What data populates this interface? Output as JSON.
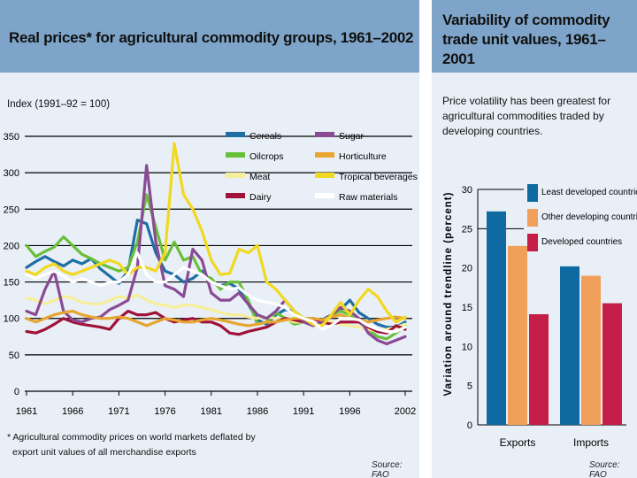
{
  "left": {
    "title": "Real prices* for agricultural commodity groups, 1961–2002",
    "ylabel": "Index (1991–92 = 100)",
    "footnote_line1": "* Agricultural commodity prices on world markets deflated by",
    "footnote_line2": "export unit values of all merchandise exports",
    "source": "Source: FAO"
  },
  "right": {
    "title": "Variability of commodity trade unit values, 1961–2001",
    "subtitle": "Price volatility has been greatest for agricultural commodities traded by developing countries.",
    "source": "Source: FAO"
  },
  "colors": {
    "panel_bg": "#e8eff7",
    "header_bg": "#7ea5c9",
    "cereals": "#1f6fa5",
    "oilcrops": "#6abf3a",
    "meat": "#f6ee9a",
    "dairy": "#a0123a",
    "sugar": "#8a4a94",
    "horticulture": "#e8a530",
    "tropical": "#f2d81e",
    "raw": "#ffffff",
    "least_developed": "#0e6aa0",
    "other_developing": "#f0a05a",
    "developed": "#c41e49"
  },
  "chart_data": [
    {
      "type": "line",
      "title": "Real prices* for agricultural commodity groups, 1961–2002",
      "ylabel": "Index (1991–92 = 100)",
      "xlabel": "",
      "ylim": [
        0,
        350
      ],
      "yticks": [
        0,
        50,
        100,
        150,
        200,
        250,
        300,
        350
      ],
      "xticks": [
        1961,
        1966,
        1971,
        1976,
        1981,
        1986,
        1991,
        1996,
        2002
      ],
      "grid": "horizontal",
      "legend_placement": "top-right",
      "x": [
        1961,
        1962,
        1963,
        1964,
        1965,
        1966,
        1967,
        1968,
        1969,
        1970,
        1971,
        1972,
        1973,
        1974,
        1975,
        1976,
        1977,
        1978,
        1979,
        1980,
        1981,
        1982,
        1983,
        1984,
        1985,
        1986,
        1987,
        1988,
        1989,
        1990,
        1991,
        1992,
        1993,
        1994,
        1995,
        1996,
        1997,
        1998,
        1999,
        2000,
        2001,
        2002
      ],
      "series": [
        {
          "name": "Cereals",
          "key": "cereals",
          "values": [
            170,
            178,
            185,
            178,
            172,
            180,
            175,
            182,
            168,
            158,
            148,
            165,
            235,
            230,
            190,
            165,
            160,
            150,
            155,
            165,
            150,
            145,
            148,
            140,
            120,
            98,
            92,
            105,
            112,
            110,
            100,
            100,
            98,
            105,
            112,
            125,
            108,
            100,
            92,
            88,
            88,
            95
          ]
        },
        {
          "name": "Oilcrops",
          "key": "oilcrops",
          "values": [
            200,
            185,
            192,
            198,
            212,
            200,
            188,
            182,
            175,
            170,
            165,
            170,
            205,
            270,
            225,
            180,
            205,
            180,
            185,
            160,
            155,
            140,
            150,
            150,
            125,
            92,
            95,
            108,
            100,
            92,
            95,
            100,
            95,
            105,
            110,
            105,
            95,
            85,
            75,
            72,
            80,
            90
          ]
        },
        {
          "name": "Meat",
          "key": "meat",
          "values": [
            128,
            125,
            120,
            125,
            130,
            128,
            122,
            120,
            120,
            125,
            130,
            128,
            132,
            125,
            120,
            118,
            115,
            118,
            118,
            115,
            112,
            108,
            105,
            105,
            102,
            100,
            102,
            100,
            98,
            95,
            95,
            100,
            98,
            95,
            92,
            90,
            88,
            85,
            82,
            85,
            88,
            92
          ]
        },
        {
          "name": "Dairy",
          "key": "dairy",
          "values": [
            82,
            80,
            85,
            92,
            100,
            95,
            92,
            90,
            88,
            85,
            100,
            110,
            105,
            105,
            108,
            100,
            95,
            98,
            100,
            95,
            95,
            90,
            80,
            78,
            82,
            85,
            88,
            95,
            100,
            98,
            95,
            100,
            95,
            92,
            95,
            95,
            95,
            88,
            82,
            80,
            90,
            85
          ]
        },
        {
          "name": "Sugar",
          "key": "sugar",
          "values": [
            110,
            105,
            140,
            165,
            110,
            98,
            95,
            100,
            102,
            112,
            118,
            125,
            170,
            310,
            205,
            145,
            140,
            130,
            195,
            180,
            135,
            125,
            125,
            135,
            120,
            105,
            100,
            110,
            125,
            110,
            95,
            90,
            95,
            105,
            115,
            110,
            100,
            80,
            70,
            65,
            70,
            75
          ]
        },
        {
          "name": "Horticulture",
          "key": "horticulture",
          "values": [
            100,
            95,
            100,
            105,
            108,
            110,
            105,
            102,
            100,
            100,
            102,
            100,
            95,
            90,
            95,
            100,
            98,
            95,
            95,
            98,
            100,
            98,
            95,
            92,
            90,
            92,
            95,
            95,
            98,
            100,
            100,
            100,
            98,
            102,
            105,
            100,
            98,
            95,
            98,
            100,
            102,
            100
          ]
        },
        {
          "name": "Tropical beverages",
          "key": "tropical",
          "values": [
            165,
            160,
            170,
            175,
            165,
            160,
            165,
            170,
            175,
            180,
            175,
            160,
            170,
            170,
            165,
            190,
            340,
            270,
            250,
            220,
            180,
            160,
            162,
            195,
            190,
            200,
            150,
            140,
            125,
            110,
            100,
            92,
            90,
            105,
            122,
            105,
            125,
            140,
            130,
            110,
            95,
            102
          ]
        },
        {
          "name": "Raw materials",
          "key": "raw",
          "values": [
            160,
            155,
            160,
            165,
            158,
            150,
            155,
            150,
            145,
            150,
            150,
            160,
            190,
            160,
            150,
            150,
            160,
            170,
            165,
            160,
            150,
            145,
            140,
            142,
            132,
            125,
            122,
            120,
            115,
            105,
            100,
            96,
            85,
            90,
            100,
            100,
            98,
            90,
            85,
            82,
            82,
            88
          ]
        }
      ]
    },
    {
      "type": "bar",
      "title": "Variability of commodity trade unit values, 1961–2001",
      "subtitle": "Price volatility has been greatest for agricultural commodities traded by developing countries.",
      "ylabel": "Variation around trendline (percent)",
      "xlabel": "",
      "categories": [
        "Exports",
        "Imports"
      ],
      "ylim": [
        0,
        30
      ],
      "yticks": [
        0,
        5,
        10,
        15,
        20,
        25,
        30
      ],
      "grid": "none",
      "legend_placement": "top-right",
      "series": [
        {
          "name": "Least developed countries",
          "key": "least_developed",
          "values": [
            27.2,
            20.2
          ]
        },
        {
          "name": "Other developing countries",
          "key": "other_developing",
          "values": [
            22.8,
            19.0
          ]
        },
        {
          "name": "Developed countries",
          "key": "developed",
          "values": [
            14.1,
            15.5
          ]
        }
      ]
    }
  ]
}
